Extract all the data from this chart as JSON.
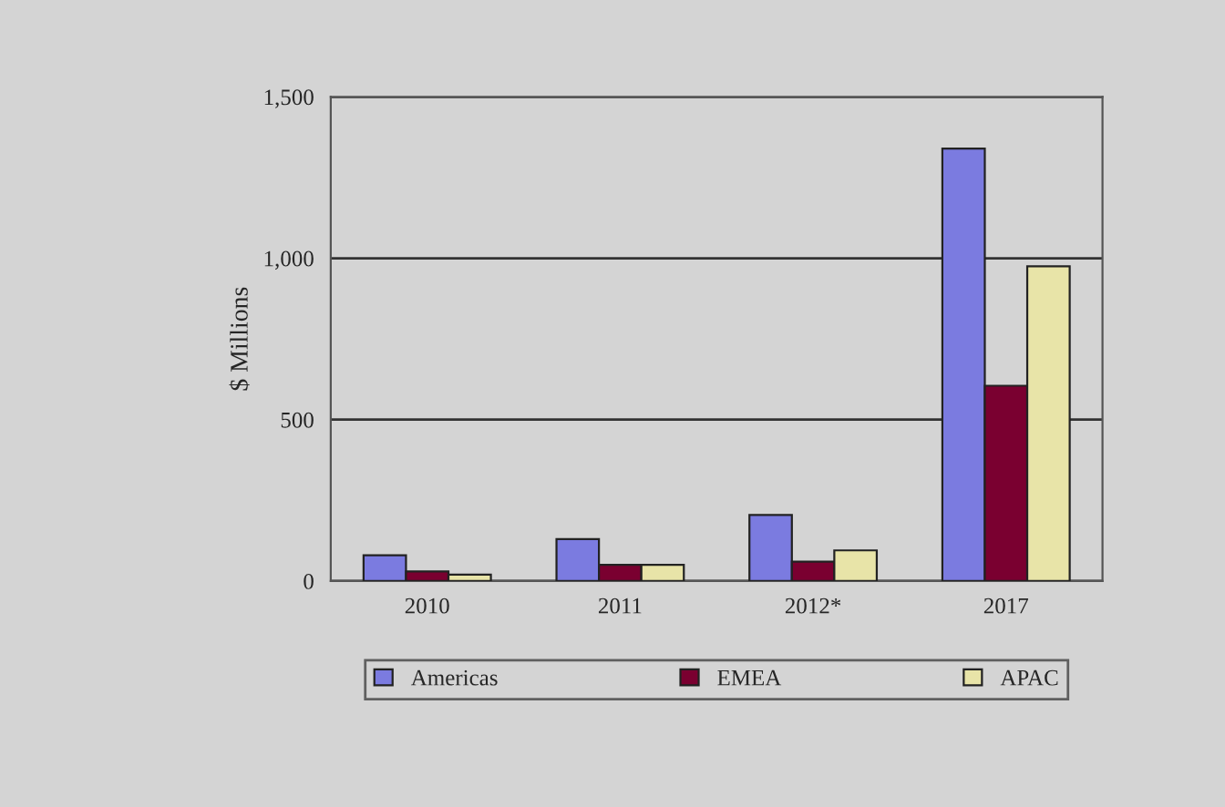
{
  "chart_data": {
    "type": "bar",
    "ylabel": "$ Millions",
    "categories": [
      "2010",
      "2011",
      "2012*",
      "2017"
    ],
    "series": [
      {
        "name": "Americas",
        "color": "#7b7be0",
        "values": [
          80,
          130,
          205,
          1340
        ]
      },
      {
        "name": "EMEA",
        "color": "#7a0030",
        "values": [
          30,
          50,
          60,
          605
        ]
      },
      {
        "name": "APAC",
        "color": "#e8e4a8",
        "values": [
          20,
          50,
          95,
          975
        ]
      }
    ],
    "ylim": [
      0,
      1500
    ],
    "yticks": [
      0,
      {
        "value": 500,
        "label": "500"
      },
      {
        "value": 1000,
        "label": "1,000"
      },
      {
        "value": 1500,
        "label": "1,500"
      }
    ],
    "grid": "y",
    "legend": "bottom"
  }
}
